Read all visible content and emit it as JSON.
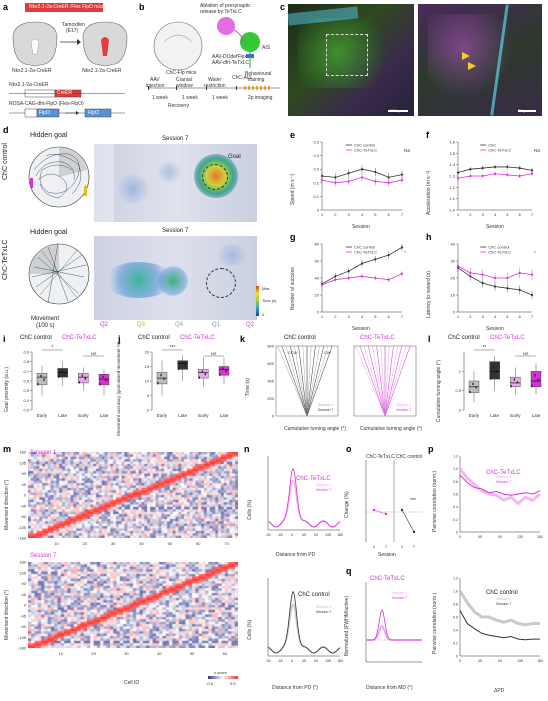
{
  "panels": {
    "a": "a",
    "b": "b",
    "c": "c",
    "d": "d",
    "e": "e",
    "f": "f",
    "g": "g",
    "h": "h",
    "i": "i",
    "j": "j",
    "k": "k",
    "l": "l",
    "m": "m",
    "n": "n",
    "o": "o",
    "p": "p",
    "q": "q"
  },
  "a": {
    "banner": "Nkx2.1-2a-CreER::Flex FlpO mice",
    "tamoxifen": "Tamoxifen",
    "e17": "(E17)",
    "left_mouse": "Nkx2.1-2a-CreER",
    "right_mouse": "Nkx2.1-2a-CreER",
    "gene1": "Nkx2.1-2a-CreER",
    "gene2": "ROSA-CAG-dfrt-FlpO (Flex-FlpO)",
    "box_cre": "CreER",
    "box_nkx": "Nkx2.1",
    "box_flpo": "FlpO",
    "box_flpo2": "FlpO"
  },
  "b": {
    "title1": "Ablation of presynaptic",
    "title2": "release by TeTxLC",
    "mouse": "ChC-Flp mice",
    "virus": "ChC-AIS",
    "virus2": "AAV-DOdefFlex",
    "virus3": "AAV-dfrt-TeTxLC",
    "ais": "AIS",
    "aav": "AAV",
    "inj": "injection",
    "cranial": "Cranial",
    "window": "window",
    "implant": "implant",
    "water": "Water",
    "restriction": "restriction",
    "behav": "Behavioural",
    "training": "training",
    "week1": "1 week",
    "week2": "1 week",
    "week3": "1 week",
    "recovery": "Recovery",
    "imaging": "2p imaging"
  },
  "c": {
    "scale1": "100 μm",
    "scale2": "20 μm"
  },
  "d": {
    "row1": "ChC control",
    "row2": "ChC-TeTxLC",
    "hidden1": "Hidden goal",
    "hidden2": "Hidden goal",
    "session1": "Session 7",
    "session2": "Session 7",
    "goal": "Goal",
    "movement": "Movement",
    "movement_sub": "(100 s)",
    "q2a": "Q2",
    "q3": "Q3",
    "q4": "Q4",
    "q1": "Q1",
    "q2b": "Q2",
    "cbar_max": "Max",
    "cbar_label": "Time (s)",
    "cbar_min": "0"
  },
  "e": {
    "ylabel": "Speed (m s⁻¹)",
    "xlabel": "Session",
    "legend1": "ChC control",
    "legend2": "ChC-TeTxLC",
    "ns": "NS",
    "yticks": [
      "0",
      "0.1",
      "0.2",
      "0.3",
      "0.4",
      "0.5"
    ]
  },
  "f": {
    "ylabel": "Acceleration (m s⁻²)",
    "xlabel": "Session",
    "legend1": "ChC",
    "legend2": "ChC-TeTxLC",
    "ns": "NS",
    "yticks": [
      "1.0",
      "1.1",
      "1.2",
      "1.3",
      "1.4",
      "1.5",
      "1.6"
    ]
  },
  "g": {
    "ylabel": "Number of success",
    "xlabel": "Session",
    "legend1": "ChC control",
    "legend2": "ChC-TeTxLC",
    "sig": "*",
    "yticks": [
      "0",
      "20",
      "40",
      "60",
      "80"
    ]
  },
  "h": {
    "ylabel": "Latency to reward (s)",
    "xlabel": "Session",
    "legend1": "ChC control",
    "legend2": "ChC-TeTxLC",
    "sig": "*",
    "yticks": [
      "0",
      "10",
      "20",
      "30",
      "40"
    ]
  },
  "i": {
    "title1": "ChC control",
    "title2": "ChC-TeTxLC",
    "ylabel": "Goal proximity (a.u.)",
    "sig1": "*",
    "sig2": "NS",
    "xticks": [
      "Early",
      "Late",
      "Early",
      "Late"
    ],
    "yticks": [
      "0.3",
      "0.4",
      "0.5",
      "0.6",
      "0.7",
      "0.8",
      "0.9"
    ]
  },
  "j": {
    "title1": "ChC control",
    "title2": "ChC-TeTxLC",
    "ylabel": "Movement accuracy (goal-aimed movement %)",
    "sig1": "***",
    "sig2": "NS",
    "xticks": [
      "Early",
      "Late",
      "Early",
      "Late"
    ],
    "yticks": [
      "0",
      "5",
      "10",
      "15",
      "20"
    ]
  },
  "k": {
    "title1": "ChC control",
    "title2": "ChC-TeTxLC",
    "ylabel": "Time (s)",
    "xlabel": "Cumulative turning angle (°)",
    "ccw": "CCW",
    "cw": "CW",
    "s1": "Session 1",
    "s7": "Session 7",
    "exp": "× 10⁴"
  },
  "l": {
    "title1": "ChC control",
    "title2": "ChC-TeTxLC",
    "ylabel": "Cumulative turning angle (°)",
    "sig1": "**",
    "sig2": "NS",
    "xticks": [
      "Early",
      "Late",
      "Early",
      "Late"
    ],
    "exp": "× 10⁴"
  },
  "m": {
    "session1": "Session 1",
    "session7": "Session 7",
    "ylabel": "Movement direction (°)",
    "xlabel": "Cell ID",
    "yticks": [
      "180",
      "135",
      "90",
      "45",
      "0",
      "-45",
      "-90",
      "-135",
      "-180"
    ],
    "xticks1": [
      "10",
      "20",
      "30",
      "40",
      "50",
      "60",
      "70"
    ],
    "xticks2": [
      "10",
      "20",
      "30",
      "40",
      "50",
      "60"
    ],
    "cbar": "z score",
    "cbar_min": "-0.5",
    "cbar_max": "0.5"
  },
  "n": {
    "title1": "ChC-TeTxLC",
    "title2": "ChC control",
    "ylabel": "Cells (%)",
    "xlabel1": "Distance from PD",
    "xlabel2": "Distance from PD (°)",
    "s1": "Session 1",
    "s7": "Session 7",
    "xticks": [
      "-90",
      "-45",
      "0",
      "45",
      "90",
      "135",
      "180"
    ]
  },
  "o": {
    "ylabel": "Change (%)",
    "xlabel": "Session",
    "left": "ChC-TeTxLC",
    "right": "ChC control",
    "sig": "***"
  },
  "p": {
    "title1": "ChC-TeTxLC",
    "title2": "ChC control",
    "ylabel": "Pairwise correlation (norm.)",
    "xlabel": "ΔPD",
    "s1": "Session 1",
    "s7": "Session 7",
    "xticks": [
      "0",
      "45",
      "90",
      "135",
      "180"
    ],
    "yticks": [
      "0",
      "0.2",
      "0.4",
      "0.6",
      "0.8",
      "1.0",
      "1.2"
    ]
  },
  "q": {
    "title": "ChC-TeTxLC",
    "ylabel": "Normalized (FWHM/active)",
    "xlabel": "Distance from MD (°)",
    "s1": "Session 1",
    "s7": "Session 7"
  },
  "colors": {
    "control": "#333333",
    "tetx": "#d632d6",
    "banner": "#e03a3a"
  }
}
